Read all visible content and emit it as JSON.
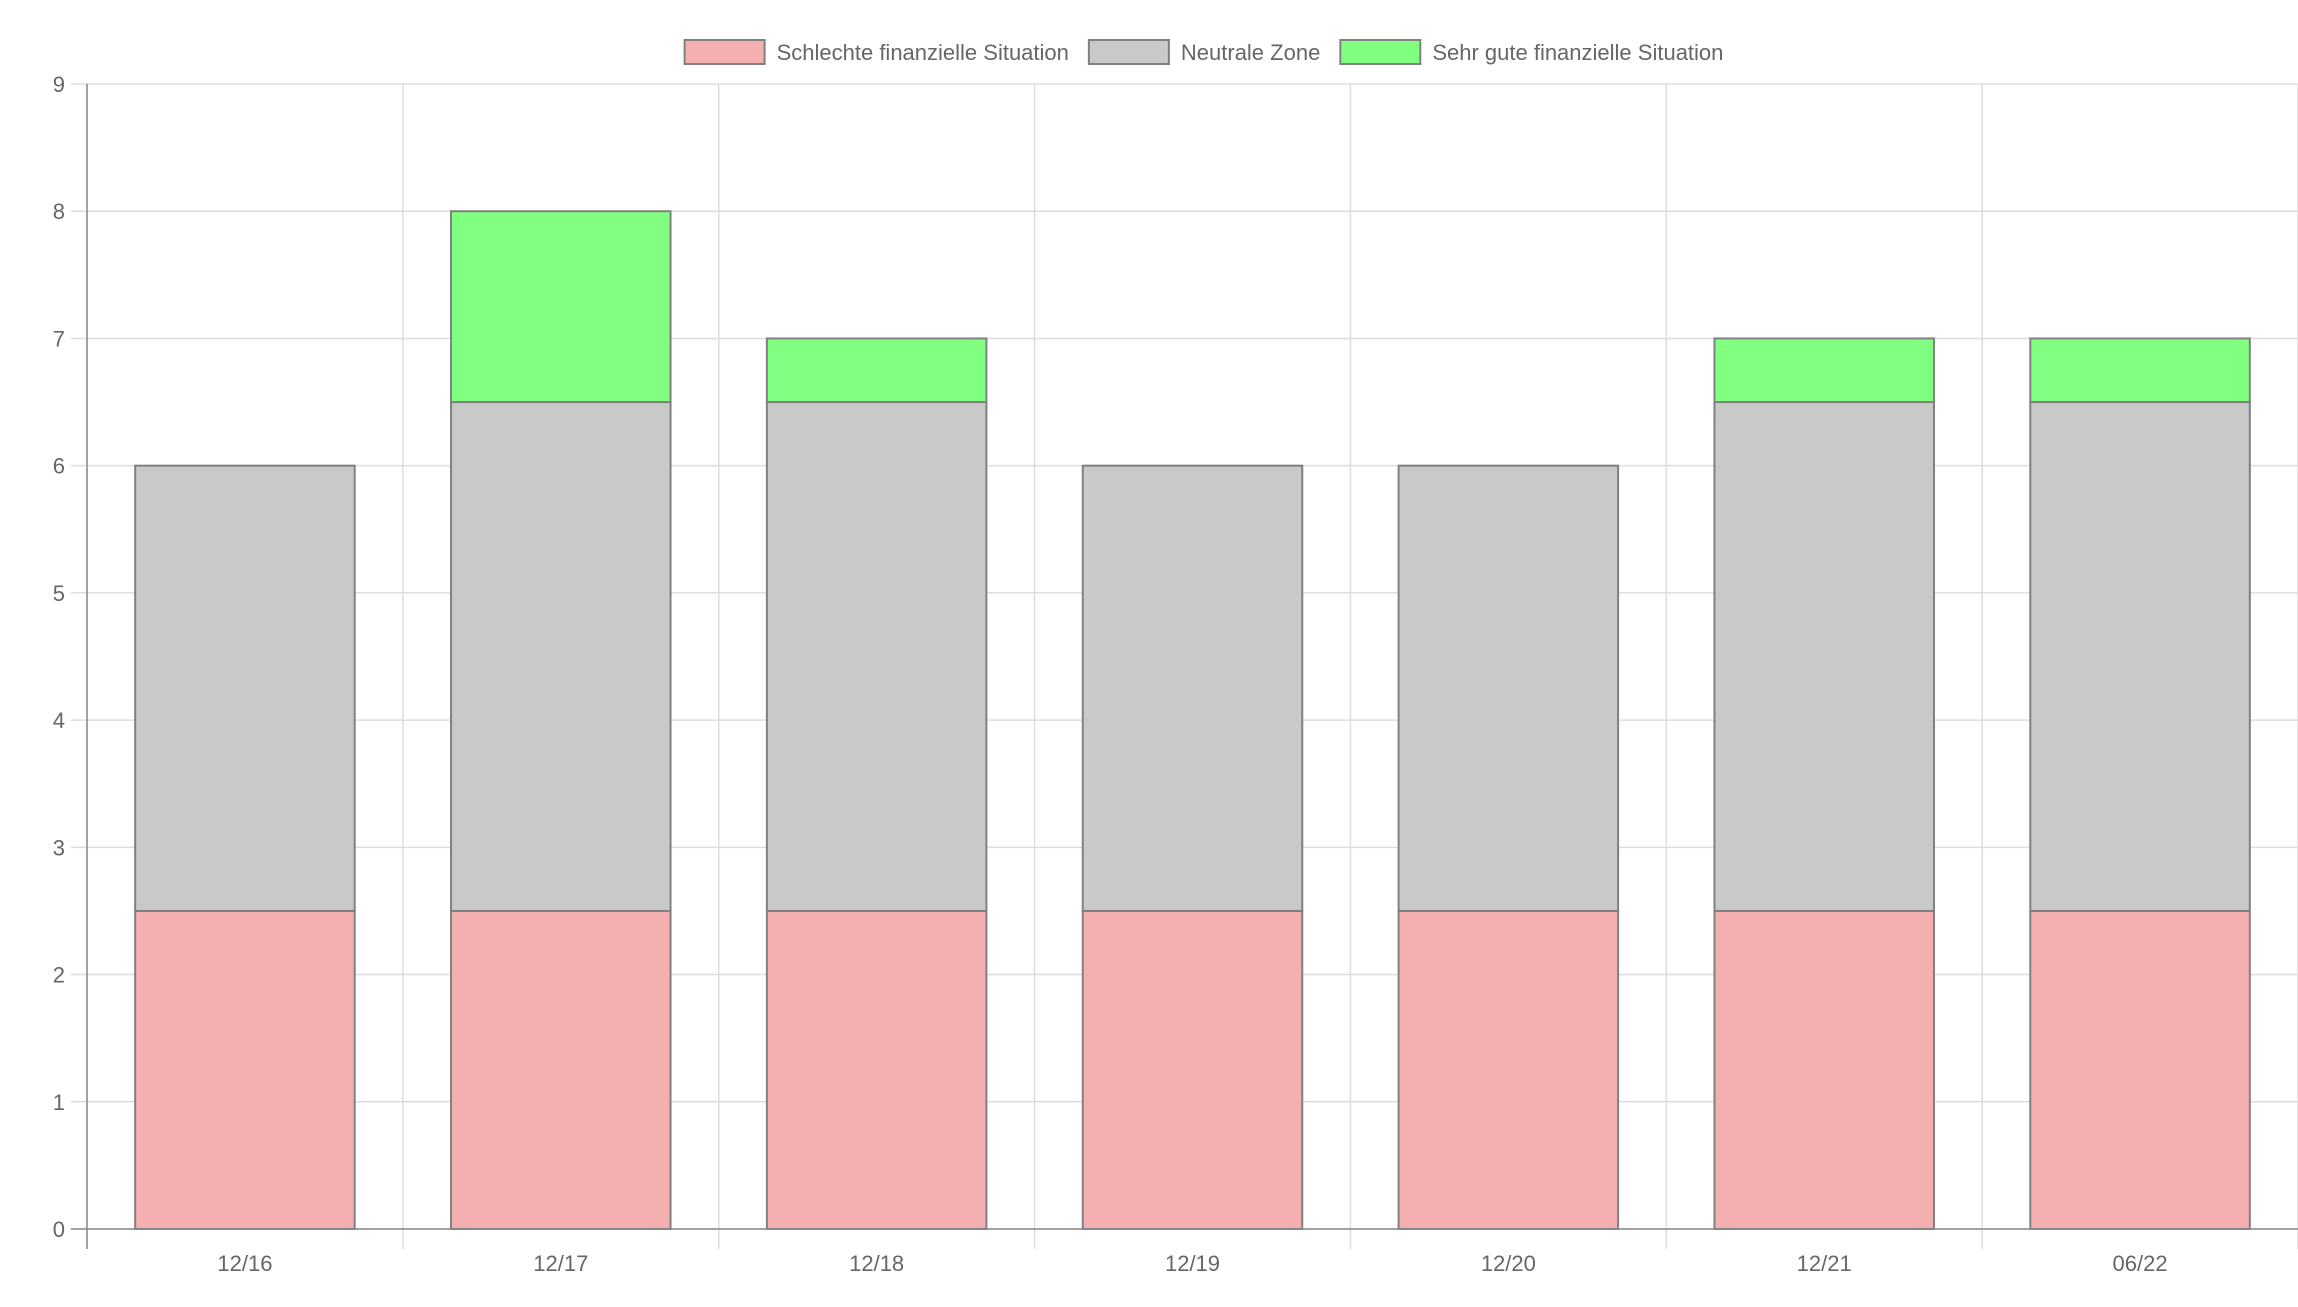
{
  "chart_data": {
    "type": "bar",
    "stacked": true,
    "title": "",
    "xlabel": "",
    "ylabel": "",
    "categories": [
      "12/16",
      "12/17",
      "12/18",
      "12/19",
      "12/20",
      "12/21",
      "06/22"
    ],
    "series": [
      {
        "name": "Schlechte finanzielle Situation",
        "values": [
          2.5,
          2.5,
          2.5,
          2.5,
          2.5,
          2.5,
          2.5
        ],
        "color": "#f4b0b0",
        "border": "#808080"
      },
      {
        "name": "Neutrale Zone",
        "values": [
          3.5,
          4,
          4,
          3.5,
          3.5,
          4,
          4
        ],
        "color": "#c9c9c9",
        "border": "#808080"
      },
      {
        "name": "Sehr gute finanzielle Situation",
        "values": [
          0,
          1.5,
          0.5,
          0,
          0,
          0.5,
          0.5
        ],
        "color": "#80ff80",
        "border": "#808080"
      }
    ],
    "ylim": [
      0,
      9
    ],
    "yticks": [
      0,
      1,
      2,
      3,
      4,
      5,
      6,
      7,
      8,
      9
    ],
    "grid": true,
    "legend_position": "top-center"
  }
}
